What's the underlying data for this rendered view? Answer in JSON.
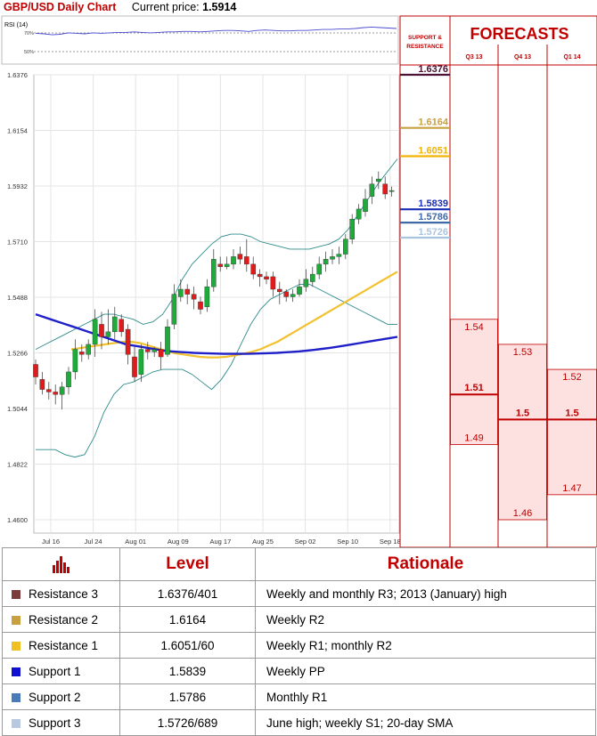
{
  "header": {
    "title": "GBP/USD Daily Chart",
    "price_label": "Current price:",
    "price": "1.5914"
  },
  "rsi": {
    "label": "RSI (14)",
    "levels": [
      "70%",
      "50%"
    ],
    "values": [
      64,
      63,
      61,
      62,
      65,
      64,
      63,
      65,
      64,
      65,
      66,
      66,
      67,
      66,
      65,
      66,
      67,
      67,
      68,
      68,
      67,
      68,
      69,
      70,
      70,
      69,
      68,
      70,
      71,
      70,
      69,
      69,
      70,
      70,
      71,
      72,
      72,
      73,
      73,
      74,
      76,
      77,
      76,
      75,
      74
    ]
  },
  "chart_data": {
    "type": "candlestick",
    "title": "GBP/USD Daily Chart",
    "y_ticks": [
      "1.6376",
      "1.6154",
      "1.5932",
      "1.5710",
      "1.5488",
      "1.5266",
      "1.5044",
      "1.4822",
      "1.4600"
    ],
    "ylim": [
      1.46,
      1.6376
    ],
    "x_ticks": [
      "Jul 16",
      "Jul 24",
      "Aug 01",
      "Aug 09",
      "Aug 17",
      "Aug 25",
      "Sep 02",
      "Sep 10",
      "Sep 18"
    ],
    "candles": [
      [
        1.522,
        1.517,
        1.524,
        1.514
      ],
      [
        1.516,
        1.512,
        1.519,
        1.51
      ],
      [
        1.512,
        1.511,
        1.515,
        1.508
      ],
      [
        1.511,
        1.51,
        1.514,
        1.506
      ],
      [
        1.51,
        1.513,
        1.515,
        1.504
      ],
      [
        1.513,
        1.519,
        1.521,
        1.51
      ],
      [
        1.519,
        1.528,
        1.532,
        1.516
      ],
      [
        1.527,
        1.526,
        1.53,
        1.523
      ],
      [
        1.526,
        1.53,
        1.532,
        1.524
      ],
      [
        1.53,
        1.54,
        1.544,
        1.525
      ],
      [
        1.538,
        1.533,
        1.543,
        1.528
      ],
      [
        1.533,
        1.535,
        1.544,
        1.53
      ],
      [
        1.535,
        1.541,
        1.545,
        1.532
      ],
      [
        1.54,
        1.535,
        1.542,
        1.533
      ],
      [
        1.536,
        1.526,
        1.538,
        1.522
      ],
      [
        1.525,
        1.517,
        1.529,
        1.515
      ],
      [
        1.518,
        1.528,
        1.53,
        1.515
      ],
      [
        1.528,
        1.527,
        1.531,
        1.524
      ],
      [
        1.527,
        1.528,
        1.529,
        1.525
      ],
      [
        1.528,
        1.525,
        1.531,
        1.52
      ],
      [
        1.526,
        1.537,
        1.54,
        1.525
      ],
      [
        1.538,
        1.55,
        1.554,
        1.536
      ],
      [
        1.549,
        1.552,
        1.556,
        1.547
      ],
      [
        1.552,
        1.55,
        1.554,
        1.546
      ],
      [
        1.55,
        1.548,
        1.553,
        1.544
      ],
      [
        1.547,
        1.544,
        1.549,
        1.542
      ],
      [
        1.545,
        1.553,
        1.556,
        1.543
      ],
      [
        1.553,
        1.564,
        1.568,
        1.551
      ],
      [
        1.562,
        1.561,
        1.565,
        1.559
      ],
      [
        1.561,
        1.562,
        1.565,
        1.56
      ],
      [
        1.562,
        1.565,
        1.568,
        1.56
      ],
      [
        1.566,
        1.564,
        1.569,
        1.562
      ],
      [
        1.565,
        1.562,
        1.572,
        1.559
      ],
      [
        1.562,
        1.558,
        1.565,
        1.556
      ],
      [
        1.558,
        1.557,
        1.56,
        1.553
      ],
      [
        1.557,
        1.556,
        1.559,
        1.554
      ],
      [
        1.557,
        1.552,
        1.559,
        1.549
      ],
      [
        1.552,
        1.551,
        1.555,
        1.546
      ],
      [
        1.551,
        1.549,
        1.552,
        1.547
      ],
      [
        1.549,
        1.55,
        1.552,
        1.547
      ],
      [
        1.55,
        1.553,
        1.556,
        1.549
      ],
      [
        1.553,
        1.556,
        1.56,
        1.551
      ],
      [
        1.555,
        1.558,
        1.561,
        1.553
      ],
      [
        1.558,
        1.562,
        1.565,
        1.556
      ],
      [
        1.562,
        1.564,
        1.567,
        1.559
      ],
      [
        1.564,
        1.565,
        1.568,
        1.562
      ],
      [
        1.565,
        1.566,
        1.569,
        1.562
      ],
      [
        1.566,
        1.572,
        1.574,
        1.564
      ],
      [
        1.572,
        1.58,
        1.582,
        1.57
      ],
      [
        1.58,
        1.584,
        1.586,
        1.578
      ],
      [
        1.583,
        1.588,
        1.592,
        1.581
      ],
      [
        1.589,
        1.594,
        1.597,
        1.586
      ],
      [
        1.595,
        1.596,
        1.599,
        1.592
      ],
      [
        1.594,
        1.59,
        1.597,
        1.588
      ],
      [
        1.591,
        1.5914,
        1.593,
        1.589
      ]
    ],
    "indicators": {
      "sma200": [
        1.542,
        1.541,
        1.54,
        1.539,
        1.538,
        1.537,
        1.536,
        1.535,
        1.534,
        1.533,
        1.532,
        1.531,
        1.53,
        1.5295,
        1.529,
        1.5285,
        1.528,
        1.5275,
        1.5272,
        1.527,
        1.5268,
        1.5266,
        1.5265,
        1.5264,
        1.5263,
        1.5262,
        1.5262,
        1.5262,
        1.5262,
        1.5263,
        1.5264,
        1.5265,
        1.5266,
        1.5268,
        1.527,
        1.5272,
        1.5275,
        1.5278,
        1.5282,
        1.5286,
        1.529,
        1.5295,
        1.53,
        1.5305,
        1.531,
        1.5315,
        1.532,
        1.5325,
        1.533
      ],
      "sma55": [
        1.528,
        1.5285,
        1.529,
        1.5295,
        1.53,
        1.5305,
        1.531,
        1.531,
        1.5305,
        1.5295,
        1.5285,
        1.5275,
        1.5265,
        1.526,
        1.5255,
        1.525,
        1.5248,
        1.5248,
        1.525,
        1.5255,
        1.5262,
        1.527,
        1.528,
        1.5295,
        1.531,
        1.533,
        1.535,
        1.537,
        1.539,
        1.541,
        1.543,
        1.545,
        1.547,
        1.549,
        1.551,
        1.553,
        1.555,
        1.557,
        1.559
      ],
      "bb_upper": [
        1.528,
        1.53,
        1.532,
        1.534,
        1.536,
        1.538,
        1.54,
        1.542,
        1.542,
        1.541,
        1.54,
        1.538,
        1.539,
        1.542,
        1.548,
        1.556,
        1.562,
        1.566,
        1.57,
        1.573,
        1.574,
        1.574,
        1.573,
        1.571,
        1.57,
        1.569,
        1.568,
        1.568,
        1.568,
        1.569,
        1.57,
        1.572,
        1.576,
        1.582,
        1.588,
        1.594,
        1.599,
        1.604
      ],
      "bb_lower": [
        1.488,
        1.488,
        1.488,
        1.486,
        1.485,
        1.486,
        1.493,
        1.503,
        1.51,
        1.514,
        1.515,
        1.517,
        1.519,
        1.52,
        1.52,
        1.52,
        1.518,
        1.515,
        1.512,
        1.516,
        1.522,
        1.53,
        1.538,
        1.544,
        1.548,
        1.55,
        1.552,
        1.554,
        1.554,
        1.552,
        1.55,
        1.548,
        1.546,
        1.544,
        1.542,
        1.54,
        1.538,
        1.538
      ]
    },
    "levels": [
      {
        "label": "1.6376",
        "value": 1.6376,
        "color": "#4b1236"
      },
      {
        "label": "1.6164",
        "value": 1.6164,
        "color": "#c9a040"
      },
      {
        "label": "1.6051",
        "value": 1.6051,
        "color": "#f0b400"
      },
      {
        "label": "1.5839",
        "value": 1.5839,
        "color": "#1b2fb5"
      },
      {
        "label": "1.5786",
        "value": 1.5786,
        "color": "#3e6aa8"
      },
      {
        "label": "1.5726",
        "value": 1.5726,
        "color": "#a9c4de"
      }
    ]
  },
  "forecasts": {
    "title": "FORECASTS",
    "sr_label": [
      "SUPPORT &",
      "RESISTANCE"
    ],
    "quarters": [
      {
        "name": "Q3 13",
        "high": "1.54",
        "mid": "1.51",
        "low": "1.49",
        "high_v": 1.54,
        "mid_v": 1.51,
        "low_v": 1.49
      },
      {
        "name": "Q4 13",
        "high": "1.53",
        "mid": "1.5",
        "low": "1.46",
        "high_v": 1.53,
        "mid_v": 1.5,
        "low_v": 1.46
      },
      {
        "name": "Q1 14",
        "high": "1.52",
        "mid": "1.5",
        "low": "1.47",
        "high_v": 1.52,
        "mid_v": 1.5,
        "low_v": 1.47
      }
    ]
  },
  "table": {
    "headers": {
      "level": "Level",
      "rationale": "Rationale"
    },
    "rows": [
      {
        "name": "Resistance 3",
        "level": "1.6376/401",
        "rationale": "Weekly and monthly R3; 2013 (January) high",
        "color": "#7b3b3b"
      },
      {
        "name": "Resistance 2",
        "level": "1.6164",
        "rationale": "Weekly R2",
        "color": "#c9a040"
      },
      {
        "name": "Resistance 1",
        "level": "1.6051/60",
        "rationale": "Weekly R1; monthly R2",
        "color": "#f0c020"
      },
      {
        "name": "Support 1",
        "level": "1.5839",
        "rationale": "Weekly PP",
        "color": "#1010d0"
      },
      {
        "name": "Support 2",
        "level": "1.5786",
        "rationale": "Monthly R1",
        "color": "#4a7ab8"
      },
      {
        "name": "Support 3",
        "level": "1.5726/689",
        "rationale": "June high; weekly S1; 20-day SMA",
        "color": "#b8c8e0"
      }
    ]
  }
}
